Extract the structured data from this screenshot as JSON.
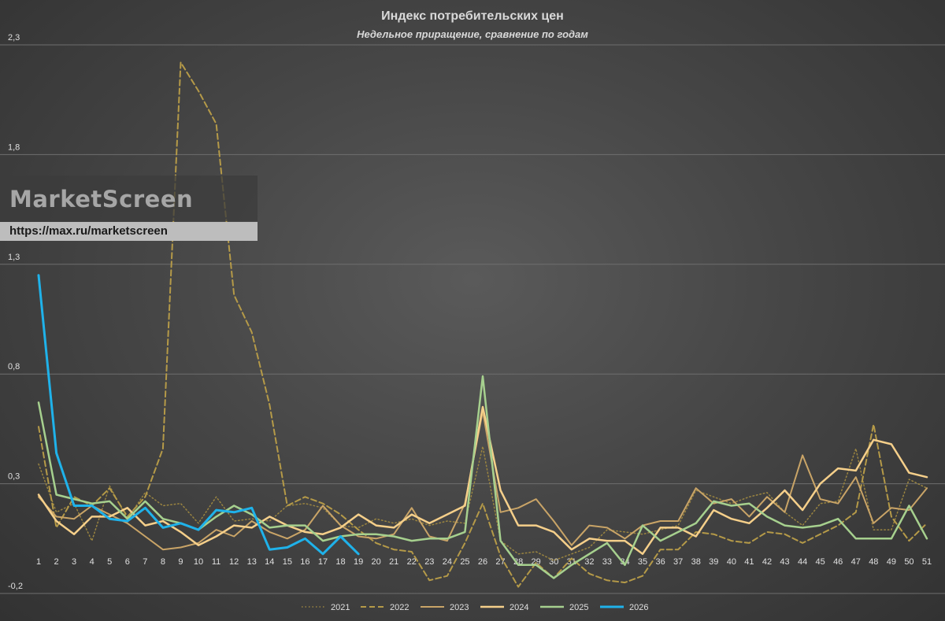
{
  "chart_data": {
    "type": "line",
    "title": "Индекс потребительских цен",
    "subtitle": "Недельное приращение, сравнение по годам",
    "xlabel": "",
    "ylabel": "",
    "ylim": [
      -0.2,
      2.3
    ],
    "y_ticks": [
      -0.2,
      0.3,
      0.8,
      1.3,
      1.8,
      2.3
    ],
    "y_tick_labels": [
      "-0,2",
      "0,3",
      "0,8",
      "1,3",
      "1,8",
      "2,3"
    ],
    "x": [
      1,
      2,
      3,
      4,
      5,
      6,
      7,
      8,
      9,
      10,
      11,
      12,
      13,
      14,
      15,
      16,
      17,
      18,
      19,
      20,
      21,
      22,
      23,
      24,
      25,
      26,
      27,
      28,
      29,
      30,
      31,
      32,
      33,
      34,
      35,
      36,
      37,
      38,
      39,
      40,
      41,
      42,
      43,
      44,
      45,
      46,
      47,
      48,
      49,
      50,
      51
    ],
    "grid": true,
    "legend_position": "bottom",
    "series": [
      {
        "name": "2021",
        "color": "#9a8440",
        "style": "dotted",
        "width": 1.5,
        "values": [
          0.39,
          0.17,
          0.21,
          0.04,
          0.29,
          0.14,
          0.26,
          0.2,
          0.21,
          0.12,
          0.24,
          0.13,
          0.14,
          0.13,
          0.2,
          0.21,
          0.19,
          0.11,
          0.1,
          0.14,
          0.12,
          0.14,
          0.11,
          0.13,
          0.12,
          0.47,
          0.04,
          -0.02,
          -0.01,
          -0.05,
          -0.02,
          0.01,
          0.09,
          0.08,
          0.07,
          0.09,
          0.11,
          0.27,
          0.24,
          0.21,
          0.24,
          0.26,
          0.17,
          0.11,
          0.21,
          0.22,
          0.46,
          0.09,
          0.09,
          0.32,
          0.28
        ]
      },
      {
        "name": "2022",
        "color": "#b59a48",
        "style": "dashed",
        "width": 2,
        "values": [
          0.56,
          0.1,
          0.24,
          0.2,
          0.28,
          0.15,
          0.24,
          0.46,
          2.22,
          2.09,
          1.94,
          1.16,
          0.99,
          0.66,
          0.2,
          0.24,
          0.21,
          0.16,
          0.09,
          0.03,
          0.0,
          -0.01,
          -0.14,
          -0.12,
          0.03,
          0.21,
          -0.03,
          -0.17,
          -0.06,
          -0.13,
          -0.04,
          -0.11,
          -0.14,
          -0.15,
          -0.12,
          0.0,
          0.0,
          0.08,
          0.07,
          0.04,
          0.03,
          0.08,
          0.07,
          0.03,
          0.07,
          0.11,
          0.17,
          0.57,
          0.15,
          0.04,
          0.12
        ]
      },
      {
        "name": "2023",
        "color": "#c9a467",
        "style": "solid",
        "width": 2,
        "values": [
          0.24,
          0.15,
          0.14,
          0.2,
          0.16,
          0.12,
          0.06,
          0.0,
          0.01,
          0.03,
          0.09,
          0.06,
          0.13,
          0.08,
          0.05,
          0.09,
          0.2,
          0.11,
          0.06,
          0.05,
          0.07,
          0.19,
          0.06,
          0.04,
          0.21,
          0.63,
          0.17,
          0.19,
          0.23,
          0.13,
          0.02,
          0.11,
          0.1,
          0.05,
          0.11,
          0.13,
          0.13,
          0.28,
          0.21,
          0.23,
          0.15,
          0.24,
          0.17,
          0.43,
          0.23,
          0.21,
          0.33,
          0.12,
          0.19,
          0.18,
          0.28
        ]
      },
      {
        "name": "2024",
        "color": "#f5cf8a",
        "style": "solid",
        "width": 2.5,
        "values": [
          0.25,
          0.13,
          0.07,
          0.15,
          0.15,
          0.19,
          0.11,
          0.13,
          0.08,
          0.02,
          0.06,
          0.11,
          0.1,
          0.15,
          0.11,
          0.08,
          0.07,
          0.1,
          0.16,
          0.11,
          0.1,
          0.16,
          0.12,
          0.16,
          0.2,
          0.65,
          0.27,
          0.11,
          0.11,
          0.08,
          0.0,
          0.05,
          0.04,
          0.04,
          -0.02,
          0.1,
          0.1,
          0.06,
          0.18,
          0.14,
          0.12,
          0.19,
          0.27,
          0.18,
          0.3,
          0.37,
          0.36,
          0.5,
          0.48,
          0.35,
          0.33
        ]
      },
      {
        "name": "2025",
        "color": "#a6d08e",
        "style": "solid",
        "width": 2.5,
        "values": [
          0.67,
          0.25,
          0.23,
          0.21,
          0.22,
          0.14,
          0.22,
          0.14,
          0.12,
          0.09,
          0.15,
          0.2,
          0.16,
          0.1,
          0.11,
          0.11,
          0.04,
          0.06,
          0.07,
          0.07,
          0.06,
          0.04,
          0.05,
          0.05,
          0.08,
          0.79,
          0.04,
          -0.07,
          -0.07,
          -0.13,
          -0.07,
          -0.02,
          0.03,
          -0.07,
          0.11,
          0.04,
          0.08,
          0.12,
          0.22,
          0.2,
          0.21,
          0.15,
          0.11,
          0.1,
          0.11,
          0.14,
          0.05,
          0.05,
          0.05,
          0.2,
          0.05
        ]
      },
      {
        "name": "2026",
        "color": "#1fb2ea",
        "style": "solid",
        "width": 3,
        "values": [
          1.25,
          0.44,
          0.2,
          0.2,
          0.14,
          0.13,
          0.19,
          0.1,
          0.12,
          0.09,
          0.18,
          0.17,
          0.19,
          0.0,
          0.01,
          0.05,
          -0.02,
          0.06,
          -0.02,
          null,
          null,
          null,
          null,
          null,
          null,
          null,
          null,
          null,
          null,
          null,
          null,
          null,
          null,
          null,
          null,
          null,
          null,
          null,
          null,
          null,
          null,
          null,
          null,
          null,
          null,
          null,
          null,
          null,
          null,
          null,
          null
        ]
      }
    ]
  },
  "watermark": {
    "brand": "MarketScreen",
    "url": "https://max.ru/marketscreen"
  }
}
